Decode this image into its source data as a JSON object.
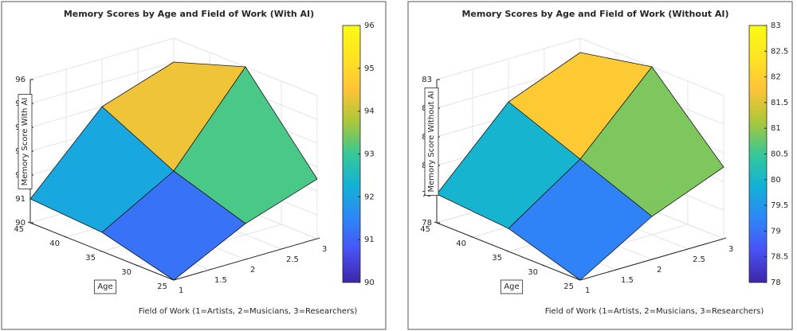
{
  "chart_data": [
    {
      "type": "surface",
      "title": "Memory Scores by Age and Field of Work (With AI)",
      "xlabel": "Field of Work (1=Artists, 2=Musicians, 3=Researchers)",
      "ylabel": "Age",
      "zlabel": "Memory Score With AI",
      "x": [
        1,
        2,
        3
      ],
      "y": [
        25,
        35,
        45
      ],
      "z": [
        [
          90,
          91.5,
          92.5
        ],
        [
          90.8,
          92.5,
          96
        ],
        [
          91,
          94,
          95
        ]
      ],
      "xlim": [
        1,
        3
      ],
      "ylim": [
        25,
        45
      ],
      "zlim": [
        90,
        96
      ],
      "xticks": [
        1,
        1.5,
        2,
        2.5,
        3
      ],
      "yticks": [
        25,
        30,
        35,
        40,
        45
      ],
      "zticks": [
        90,
        91,
        92,
        93,
        94,
        95,
        96
      ],
      "clim": [
        90,
        96
      ],
      "cticks": [
        90,
        91,
        92,
        93,
        94,
        95,
        96
      ],
      "colormap": "parula",
      "grid": true
    },
    {
      "type": "surface",
      "title": "Memory Scores by Age and Field of Work (Without AI)",
      "xlabel": "Field of Work (1=Artists, 2=Musicians, 3=Researchers)",
      "ylabel": "Age",
      "zlabel": "Memory Score Without AI",
      "x": [
        1,
        2,
        3
      ],
      "y": [
        25,
        35,
        45
      ],
      "z": [
        [
          78,
          79.5,
          80.5
        ],
        [
          78.8,
          80.5,
          83
        ],
        [
          79,
          81.5,
          82.5
        ]
      ],
      "xlim": [
        1,
        3
      ],
      "ylim": [
        25,
        45
      ],
      "zlim": [
        78,
        83
      ],
      "xticks": [
        1,
        1.5,
        2,
        2.5,
        3
      ],
      "yticks": [
        25,
        30,
        35,
        40,
        45
      ],
      "zticks": [
        78,
        79,
        80,
        81,
        82,
        83
      ],
      "clim": [
        78,
        83
      ],
      "cticks": [
        78,
        78.5,
        79,
        79.5,
        80,
        80.5,
        81,
        81.5,
        82,
        82.5,
        83
      ],
      "colormap": "parula",
      "grid": true
    }
  ]
}
